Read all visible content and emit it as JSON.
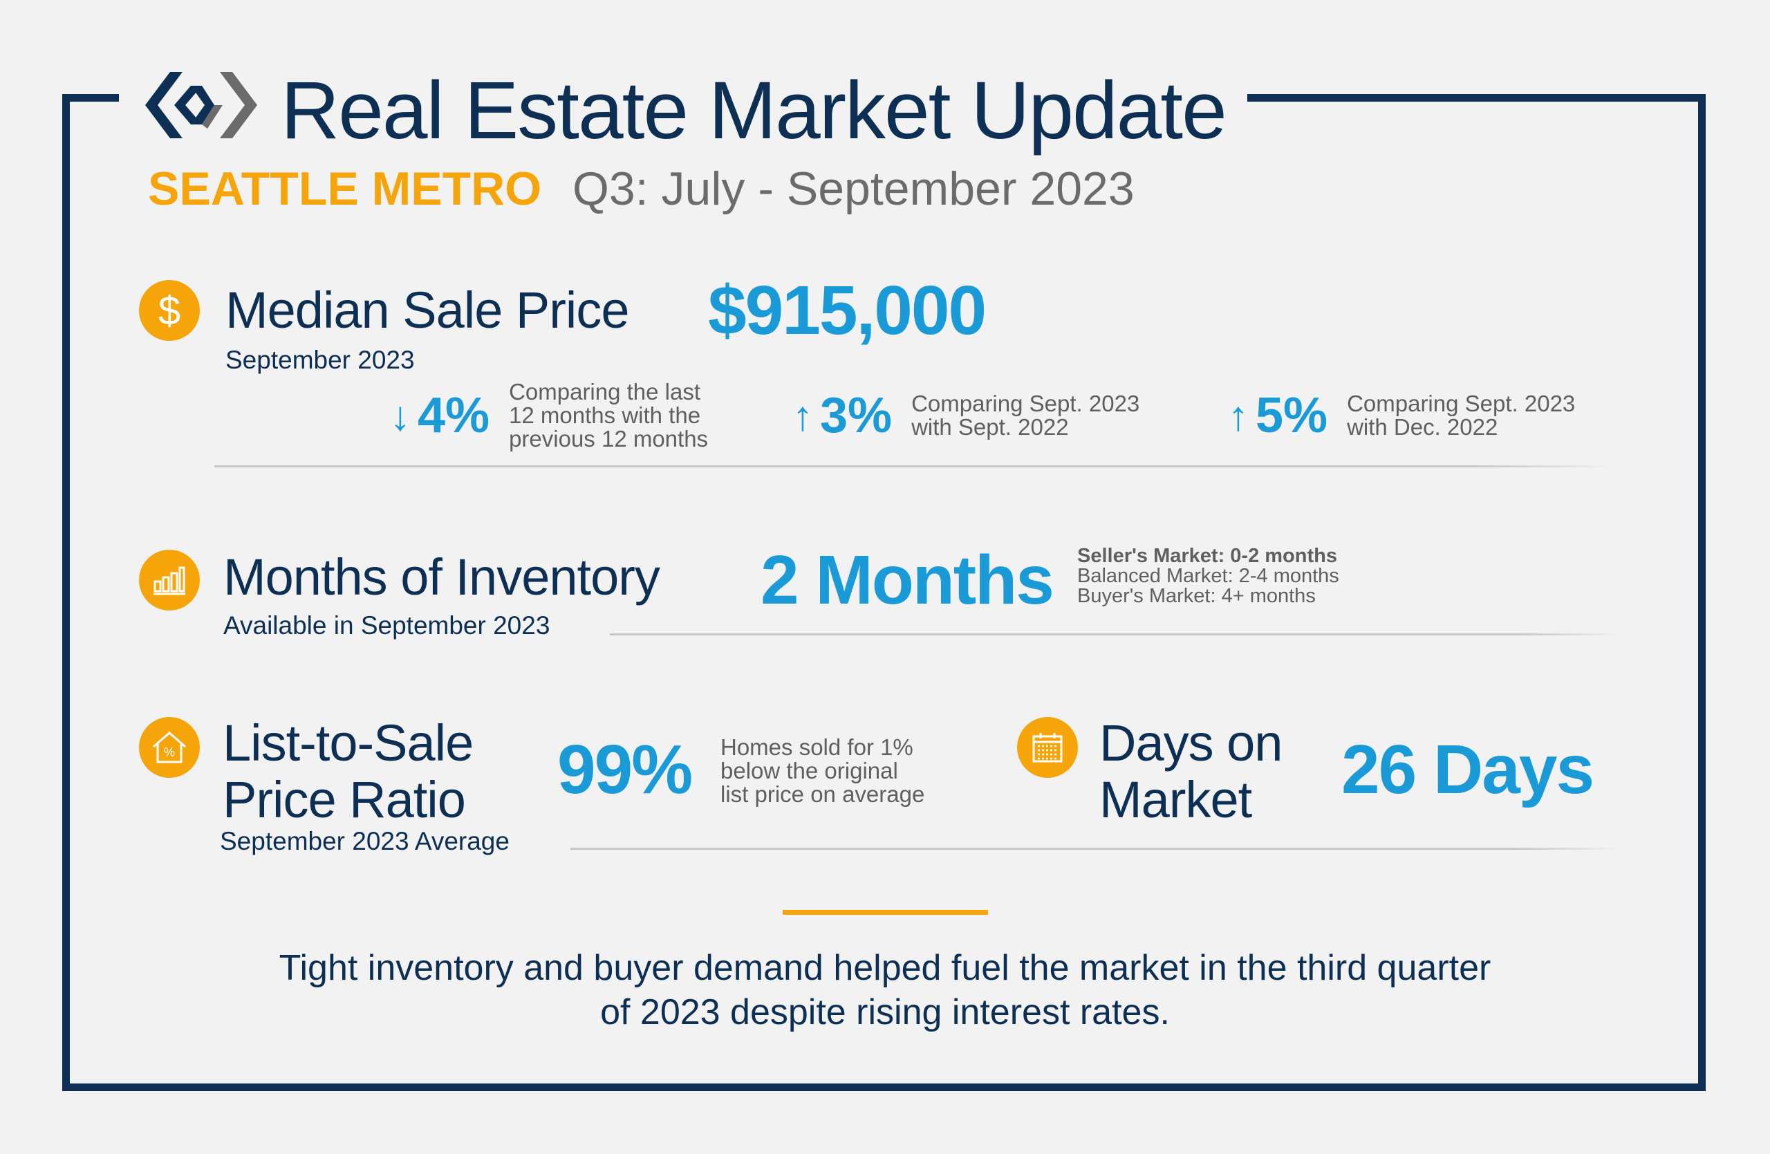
{
  "header": {
    "title": "Real Estate Market Update",
    "region": "SEATTLE METRO",
    "period": "Q3: July - September 2023"
  },
  "colors": {
    "navy": "#0c2f53",
    "blue": "#1a9ad6",
    "orange": "#f5a50a",
    "gray": "#5f5f5f"
  },
  "median": {
    "icon": "dollar-icon",
    "title": "Median Sale Price",
    "value": "$915,000",
    "subtitle": "September 2023",
    "stats": [
      {
        "direction": "down",
        "value": "4%",
        "desc": [
          "Comparing the last",
          "12 months with the",
          "previous 12 months"
        ]
      },
      {
        "direction": "up",
        "value": "3%",
        "desc": [
          "Comparing Sept. 2023",
          "with Sept. 2022"
        ]
      },
      {
        "direction": "up",
        "value": "5%",
        "desc": [
          "Comparing Sept. 2023",
          "with Dec. 2022"
        ]
      }
    ]
  },
  "inventory": {
    "icon": "bar-chart-icon",
    "title": "Months of Inventory",
    "value": "2 Months",
    "subtitle": "Available in September 2023",
    "legend": [
      "Seller's Market: 0-2 months",
      "Balanced Market: 2-4 months",
      "Buyer's Market: 4+ months"
    ]
  },
  "ratio": {
    "icon": "house-percent-icon",
    "title_lines": [
      "List-to-Sale",
      "Price Ratio"
    ],
    "value": "99%",
    "desc": [
      "Homes sold for 1%",
      "below the original",
      "list price on average"
    ],
    "subtitle": "September 2023 Average"
  },
  "days": {
    "icon": "calendar-icon",
    "title_lines": [
      "Days on",
      "Market"
    ],
    "value": "26 Days"
  },
  "footer": {
    "lines": [
      "Tight inventory and buyer demand helped fuel the market in the third quarter",
      "of 2023 despite rising interest rates."
    ]
  }
}
